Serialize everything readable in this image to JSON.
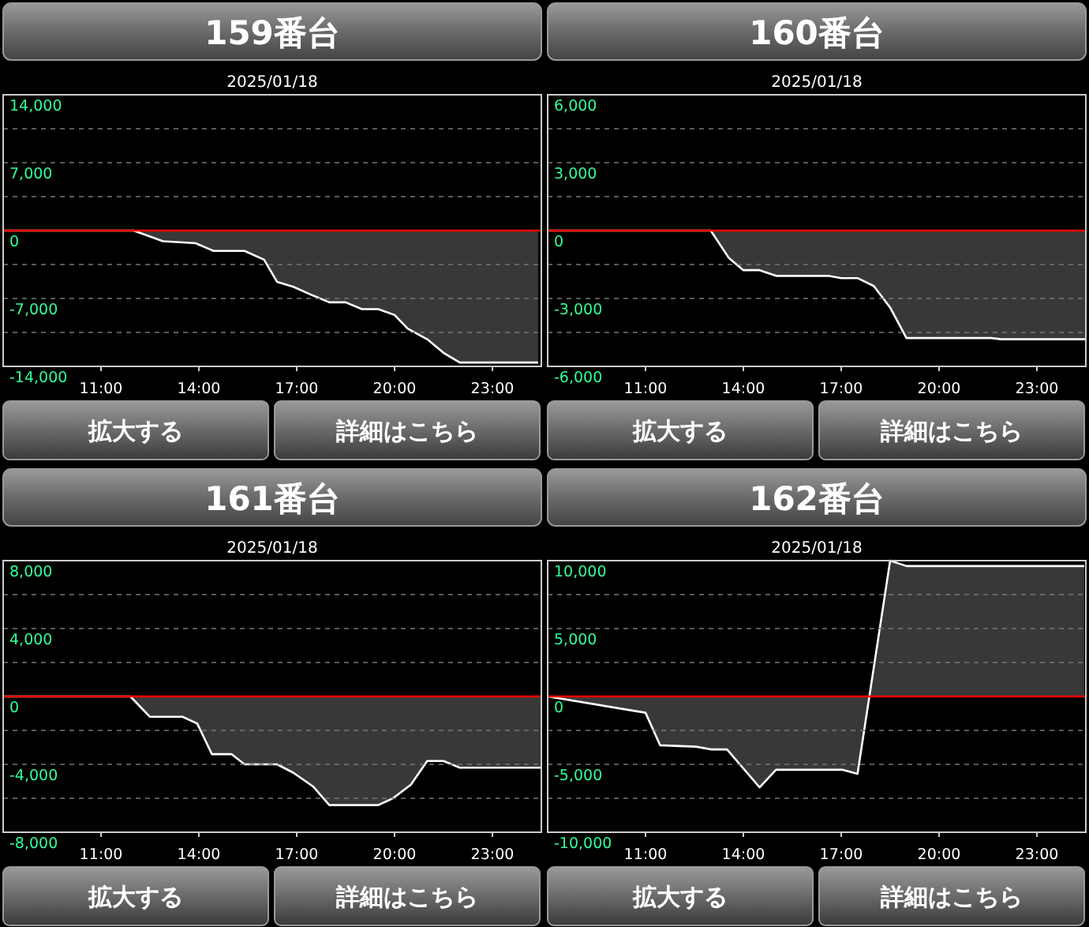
{
  "chart_data": [
    {
      "type": "area",
      "title": "159番台",
      "subtitle": "2025/01/18",
      "xlim": [
        8,
        24.5
      ],
      "xticks": [
        {
          "value": 11,
          "label": "11:00"
        },
        {
          "value": 14,
          "label": "14:00"
        },
        {
          "value": 17,
          "label": "17:00"
        },
        {
          "value": 20,
          "label": "20:00"
        },
        {
          "value": 23,
          "label": "23:00"
        }
      ],
      "ylim": [
        -14000,
        14000
      ],
      "yticks": [
        {
          "value": 14000,
          "label": "14,000"
        },
        {
          "value": 10500,
          "label": null
        },
        {
          "value": 7000,
          "label": "7,000"
        },
        {
          "value": 3500,
          "label": null
        },
        {
          "value": 0,
          "label": "0"
        },
        {
          "value": -3500,
          "label": null
        },
        {
          "value": -7000,
          "label": "-7,000"
        },
        {
          "value": -10500,
          "label": null
        },
        {
          "value": -14000,
          "label": "-14,000"
        }
      ],
      "grid": "y",
      "ref_lines": [
        {
          "axis": "y",
          "value": 0,
          "color": "#ff0000"
        }
      ],
      "annotations": [
        "拡大する",
        "詳細はこちら"
      ],
      "x": [
        8,
        12,
        12.9,
        13.9,
        14.45,
        15.4,
        16,
        16.4,
        16.9,
        17.5,
        18,
        18.5,
        19,
        19.5,
        20,
        20.4,
        21,
        21.5,
        22,
        24.4
      ],
      "series": [
        {
          "color": "#ffffff",
          "values": [
            0,
            0,
            -1100,
            -1300,
            -2100,
            -2100,
            -3000,
            -5300,
            -5800,
            -6700,
            -7400,
            -7400,
            -8100,
            -8100,
            -8700,
            -10100,
            -11200,
            -12600,
            -13600,
            -13600
          ]
        }
      ]
    },
    {
      "type": "area",
      "title": "160番台",
      "subtitle": "2025/01/18",
      "xlim": [
        8,
        24.5
      ],
      "xticks": [
        {
          "value": 11,
          "label": "11:00"
        },
        {
          "value": 14,
          "label": "14:00"
        },
        {
          "value": 17,
          "label": "17:00"
        },
        {
          "value": 20,
          "label": "20:00"
        },
        {
          "value": 23,
          "label": "23:00"
        }
      ],
      "ylim": [
        -6000,
        6000
      ],
      "yticks": [
        {
          "value": 6000,
          "label": "6,000"
        },
        {
          "value": 4500,
          "label": null
        },
        {
          "value": 3000,
          "label": "3,000"
        },
        {
          "value": 1500,
          "label": null
        },
        {
          "value": 0,
          "label": "0"
        },
        {
          "value": -1500,
          "label": null
        },
        {
          "value": -3000,
          "label": "-3,000"
        },
        {
          "value": -4500,
          "label": null
        },
        {
          "value": -6000,
          "label": "-6,000"
        }
      ],
      "grid": "y",
      "ref_lines": [
        {
          "axis": "y",
          "value": 0,
          "color": "#ff0000"
        }
      ],
      "annotations": [
        "拡大する",
        "詳細はこちら"
      ],
      "x": [
        8,
        13,
        13.55,
        14,
        14.5,
        15,
        16.6,
        17,
        17.5,
        18,
        18.5,
        19,
        21.6,
        21.9,
        24.5
      ],
      "series": [
        {
          "color": "#ffffff",
          "values": [
            0,
            0,
            -1200,
            -1750,
            -1750,
            -2000,
            -2000,
            -2100,
            -2100,
            -2450,
            -3400,
            -4750,
            -4750,
            -4800,
            -4800
          ]
        }
      ]
    },
    {
      "type": "area",
      "title": "161番台",
      "subtitle": "2025/01/18",
      "xlim": [
        8,
        24.5
      ],
      "xticks": [
        {
          "value": 11,
          "label": "11:00"
        },
        {
          "value": 14,
          "label": "14:00"
        },
        {
          "value": 17,
          "label": "17:00"
        },
        {
          "value": 20,
          "label": "20:00"
        },
        {
          "value": 23,
          "label": "23:00"
        }
      ],
      "ylim": [
        -8000,
        8000
      ],
      "yticks": [
        {
          "value": 8000,
          "label": "8,000"
        },
        {
          "value": 6000,
          "label": null
        },
        {
          "value": 4000,
          "label": "4,000"
        },
        {
          "value": 2000,
          "label": null
        },
        {
          "value": 0,
          "label": "0"
        },
        {
          "value": -2000,
          "label": null
        },
        {
          "value": -4000,
          "label": "-4,000"
        },
        {
          "value": -6000,
          "label": null
        },
        {
          "value": -8000,
          "label": "-8,000"
        }
      ],
      "grid": "y",
      "ref_lines": [
        {
          "axis": "y",
          "value": 0,
          "color": "#ff0000"
        }
      ],
      "annotations": [
        "拡大する",
        "詳細はこちら"
      ],
      "x": [
        8,
        11.9,
        12.5,
        13.5,
        13.95,
        14.4,
        15,
        15.4,
        16.4,
        16.9,
        17.5,
        18,
        19.5,
        19.95,
        20.5,
        21,
        21.5,
        22,
        24.5
      ],
      "series": [
        {
          "color": "#ffffff",
          "values": [
            0,
            0,
            -1200,
            -1200,
            -1600,
            -3400,
            -3400,
            -4000,
            -4000,
            -4500,
            -5300,
            -6400,
            -6400,
            -6000,
            -5200,
            -3800,
            -3800,
            -4200,
            -4200
          ]
        }
      ]
    },
    {
      "type": "area",
      "title": "162番台",
      "subtitle": "2025/01/18",
      "xlim": [
        8,
        24.5
      ],
      "xticks": [
        {
          "value": 11,
          "label": "11:00"
        },
        {
          "value": 14,
          "label": "14:00"
        },
        {
          "value": 17,
          "label": "17:00"
        },
        {
          "value": 20,
          "label": "20:00"
        },
        {
          "value": 23,
          "label": "23:00"
        }
      ],
      "ylim": [
        -10000,
        10000
      ],
      "yticks": [
        {
          "value": 10000,
          "label": "10,000"
        },
        {
          "value": 7500,
          "label": null
        },
        {
          "value": 5000,
          "label": "5,000"
        },
        {
          "value": 2500,
          "label": null
        },
        {
          "value": 0,
          "label": "0"
        },
        {
          "value": -2500,
          "label": null
        },
        {
          "value": -5000,
          "label": "-5,000"
        },
        {
          "value": -7500,
          "label": null
        },
        {
          "value": -10000,
          "label": "-10,000"
        }
      ],
      "grid": "y",
      "ref_lines": [
        {
          "axis": "y",
          "value": 0,
          "color": "#ff0000"
        }
      ],
      "annotations": [
        "拡大する",
        "詳細はこちら"
      ],
      "x": [
        8,
        11,
        11.45,
        12.55,
        13,
        13.5,
        14.5,
        15,
        17.05,
        17.5,
        18.5,
        19,
        24.45
      ],
      "series": [
        {
          "color": "#ffffff",
          "values": [
            0,
            -1200,
            -3600,
            -3700,
            -3900,
            -3900,
            -6700,
            -5400,
            -5400,
            -5700,
            10000,
            9600,
            9600
          ]
        }
      ]
    }
  ]
}
